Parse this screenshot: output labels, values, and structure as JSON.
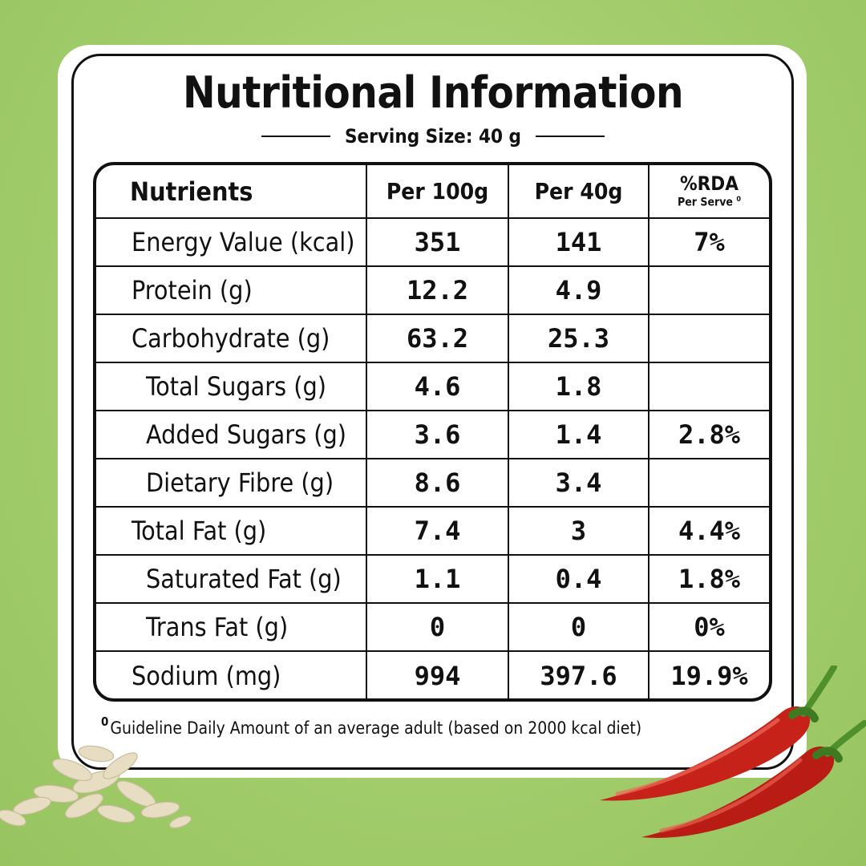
{
  "title": "Nutritional Information",
  "serving_size": "Serving Size: 40 g",
  "table": {
    "headers": {
      "nutrients": "Nutrients",
      "per100": "Per 100g",
      "per40": "Per 40g",
      "rda": "%RDA",
      "rda_sub": "Per Serve",
      "rda_mark": "0"
    },
    "rows": [
      {
        "name": "Energy Value (kcal)",
        "per100": "351",
        "per40": "141",
        "rda": "7%"
      },
      {
        "name": "Protein (g)",
        "per100": "12.2",
        "per40": "4.9",
        "rda": ""
      },
      {
        "name": "Carbohydrate (g)",
        "per100": "63.2",
        "per40": "25.3",
        "rda": ""
      },
      {
        "name": "Total Sugars (g)",
        "per100": "4.6",
        "per40": "1.8",
        "rda": ""
      },
      {
        "name": "Added Sugars (g)",
        "per100": "3.6",
        "per40": "1.4",
        "rda": "2.8%"
      },
      {
        "name": "Dietary Fibre (g)",
        "per100": "8.6",
        "per40": "3.4",
        "rda": ""
      },
      {
        "name": "Total Fat (g)",
        "per100": "7.4",
        "per40": "3",
        "rda": "4.4%"
      },
      {
        "name": "Saturated Fat (g)",
        "per100": "1.1",
        "per40": "0.4",
        "rda": "1.8%"
      },
      {
        "name": "Trans Fat (g)",
        "per100": "0",
        "per40": "0",
        "rda": "0%"
      },
      {
        "name": "Sodium (mg)",
        "per100": "994",
        "per40": "397.6",
        "rda": "19.9%"
      }
    ]
  },
  "footnote": {
    "mark": "0",
    "text": "Guideline Daily Amount of an average adult (based on 2000 kcal diet)"
  },
  "colors": {
    "background": "#a3cd6c",
    "card": "#ffffff",
    "ink": "#111111",
    "chilli": "#c8231a",
    "oats": "#e6dcc0"
  },
  "decorations": [
    "oats-icon",
    "red-chilli-icon"
  ]
}
